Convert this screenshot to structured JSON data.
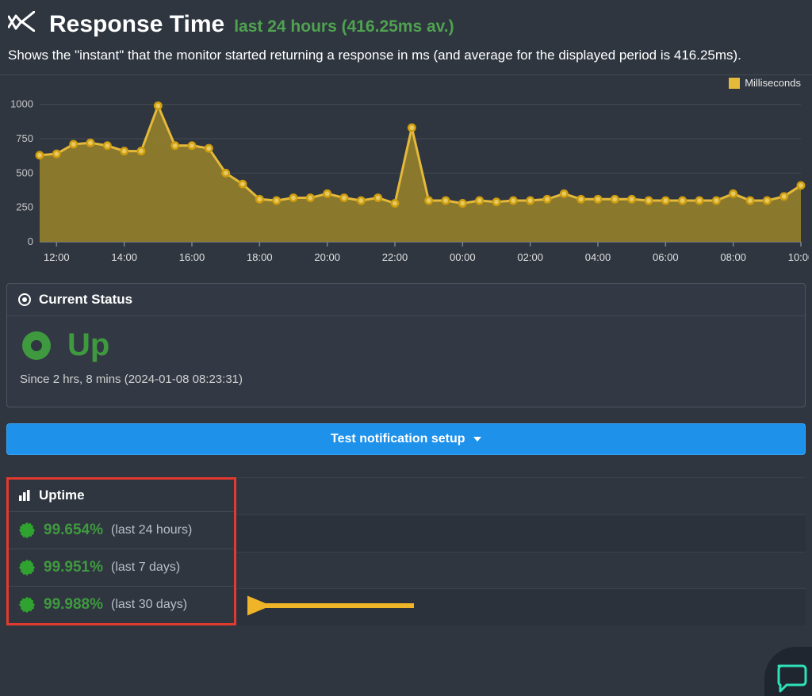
{
  "header": {
    "title": "Response Time",
    "subtitle": "last 24 hours (416.25ms av.)",
    "description": "Shows the \"instant\" that the monitor started returning a response in ms (and average for the displayed period is 416.25ms)."
  },
  "chart": {
    "type": "area",
    "legend_label": "Milliseconds",
    "y_ticks": [
      0,
      250,
      500,
      750,
      1000
    ],
    "ylim": [
      0,
      1050
    ],
    "x_labels": [
      "12:00",
      "14:00",
      "16:00",
      "18:00",
      "20:00",
      "22:00",
      "00:00",
      "02:00",
      "04:00",
      "06:00",
      "08:00",
      "10:00"
    ],
    "x_tick_indices": [
      1,
      5,
      9,
      13,
      17,
      21,
      25,
      29,
      33,
      37,
      41,
      45
    ],
    "series_color": "#e5b93a",
    "fill_color": "#8f7c2c",
    "grid_color": "#444b55",
    "axis_color": "#7a828d",
    "dot_stroke": "#cf9d0e",
    "dot_fill": "#e6c95f",
    "background": "#2f3640",
    "points": [
      630,
      640,
      710,
      720,
      700,
      660,
      660,
      990,
      700,
      700,
      680,
      500,
      420,
      310,
      300,
      320,
      320,
      350,
      320,
      300,
      320,
      280,
      830,
      300,
      300,
      280,
      300,
      290,
      300,
      300,
      310,
      350,
      310,
      310,
      310,
      310,
      300,
      300,
      300,
      300,
      300,
      350,
      300,
      300,
      330,
      410
    ]
  },
  "status": {
    "panel_title": "Current Status",
    "label": "Up",
    "color": "#3f9a3f",
    "since_text": "Since 2 hrs, 8 mins (2024-01-08 08:23:31)"
  },
  "test_button": {
    "label": "Test notification setup"
  },
  "uptime": {
    "title": "Uptime",
    "highlight_border": "#e23a2f",
    "arrow_color": "#f0b429",
    "seal_color": "#2fa22f",
    "rows": [
      {
        "pct": "99.654%",
        "period": "(last 24 hours)"
      },
      {
        "pct": "99.951%",
        "period": "(last 7 days)"
      },
      {
        "pct": "99.988%",
        "period": "(last 30 days)"
      }
    ]
  },
  "chat_icon_color": "#2fe0b8"
}
